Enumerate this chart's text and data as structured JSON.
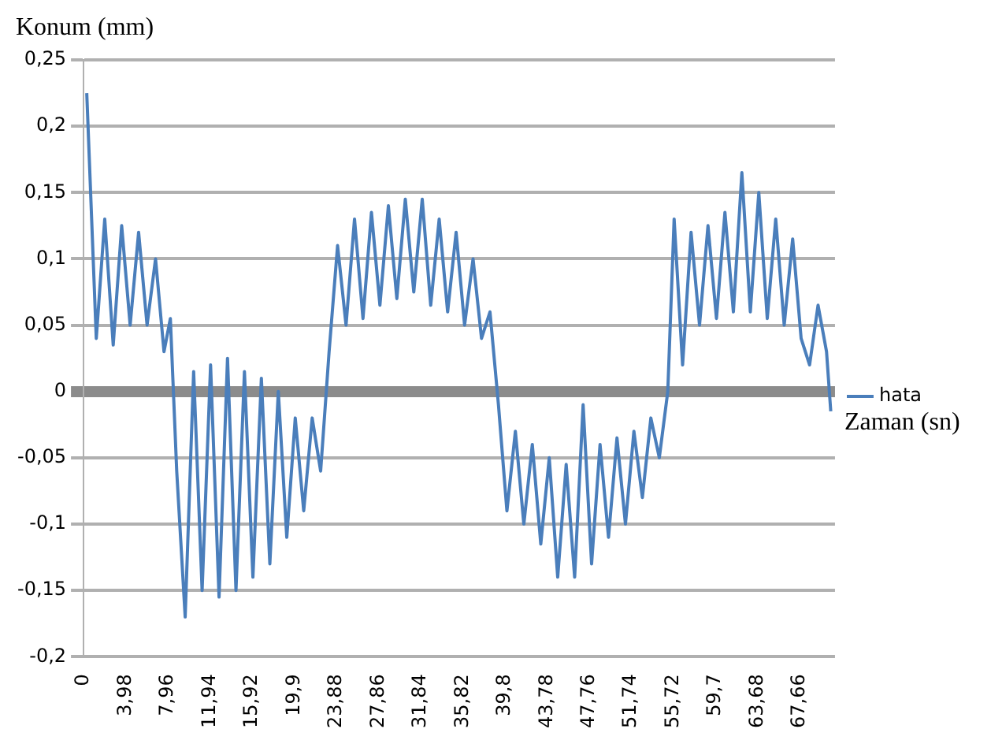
{
  "chart_data": {
    "type": "line",
    "ylabel": "Konum (mm)",
    "xlabel": "Zaman (sn)",
    "xlim": [
      0,
      71
    ],
    "ylim": [
      -0.2,
      0.25
    ],
    "yticks": [
      {
        "value": -0.2,
        "label": "-0,2"
      },
      {
        "value": -0.15,
        "label": "-0,15"
      },
      {
        "value": -0.1,
        "label": "-0,1"
      },
      {
        "value": -0.05,
        "label": "-0,05"
      },
      {
        "value": 0,
        "label": "0"
      },
      {
        "value": 0.05,
        "label": "0,05"
      },
      {
        "value": 0.1,
        "label": "0,1"
      },
      {
        "value": 0.15,
        "label": "0,15"
      },
      {
        "value": 0.2,
        "label": "0,2"
      },
      {
        "value": 0.25,
        "label": "0,25"
      }
    ],
    "xticks": [
      0,
      {
        "value": 3.98,
        "label": "3,98"
      },
      {
        "value": 7.96,
        "label": "7,96"
      },
      {
        "value": 11.94,
        "label": "11,94"
      },
      {
        "value": 15.92,
        "label": "15,92"
      },
      {
        "value": 19.9,
        "label": "19,9"
      },
      {
        "value": 23.88,
        "label": "23,88"
      },
      {
        "value": 27.86,
        "label": "27,86"
      },
      {
        "value": 31.84,
        "label": "31,84"
      },
      {
        "value": 35.82,
        "label": "35,82"
      },
      {
        "value": 39.8,
        "label": "39,8"
      },
      {
        "value": 43.78,
        "label": "43,78"
      },
      {
        "value": 47.76,
        "label": "47,76"
      },
      {
        "value": 51.74,
        "label": "51,74"
      },
      {
        "value": 55.72,
        "label": "55,72"
      },
      {
        "value": 59.7,
        "label": "59,7"
      },
      {
        "value": 63.68,
        "label": "63,68"
      },
      {
        "value": 67.66,
        "label": "67,66"
      }
    ],
    "grid": "y",
    "legend": "right",
    "marker": "none",
    "line_style": "solid",
    "x": [
      0.3,
      1.2,
      2,
      2.8,
      3.6,
      4.4,
      5.2,
      6,
      6.8,
      7.6,
      8.2,
      8.8,
      9.6,
      10.4,
      11.2,
      12,
      12.8,
      13.6,
      14.4,
      15.2,
      16,
      16.8,
      17.6,
      18.4,
      19.2,
      20,
      20.8,
      21.6,
      22.4,
      23.2,
      24,
      24.8,
      25.6,
      26.4,
      27.2,
      28,
      28.8,
      29.6,
      30.4,
      31.2,
      32,
      32.8,
      33.6,
      34.4,
      35.2,
      36,
      36.8,
      37.6,
      38.4,
      39.2,
      40,
      40.8,
      41.6,
      42.4,
      43.2,
      44,
      44.8,
      45.6,
      46.4,
      47.2,
      48,
      48.8,
      49.6,
      50.4,
      51.2,
      52,
      52.8,
      53.6,
      54.4,
      55.2,
      55.8,
      56.6,
      57.4,
      58.2,
      59,
      59.8,
      60.6,
      61.4,
      62.2,
      63,
      63.8,
      64.6,
      65.4,
      66.2,
      67,
      67.8,
      68.6,
      69.4,
      70.2,
      70.6
    ],
    "series": [
      {
        "name": "hata",
        "color": "#4a7ebb",
        "values": [
          0.225,
          0.04,
          0.13,
          0.035,
          0.125,
          0.05,
          0.12,
          0.05,
          0.1,
          0.03,
          0.055,
          -0.06,
          -0.17,
          0.015,
          -0.15,
          0.02,
          -0.155,
          0.025,
          -0.15,
          0.015,
          -0.14,
          0.01,
          -0.13,
          0.0,
          -0.11,
          -0.02,
          -0.09,
          -0.02,
          -0.06,
          0.03,
          0.11,
          0.05,
          0.13,
          0.055,
          0.135,
          0.065,
          0.14,
          0.07,
          0.145,
          0.075,
          0.145,
          0.065,
          0.13,
          0.06,
          0.12,
          0.05,
          0.1,
          0.04,
          0.06,
          -0.01,
          -0.09,
          -0.03,
          -0.1,
          -0.04,
          -0.115,
          -0.05,
          -0.14,
          -0.055,
          -0.14,
          -0.01,
          -0.13,
          -0.04,
          -0.11,
          -0.035,
          -0.1,
          -0.03,
          -0.08,
          -0.02,
          -0.05,
          0.0,
          0.13,
          0.02,
          0.12,
          0.05,
          0.125,
          0.055,
          0.135,
          0.06,
          0.165,
          0.06,
          0.15,
          0.055,
          0.13,
          0.05,
          0.115,
          0.04,
          0.02,
          0.065,
          0.03,
          -0.015
        ]
      }
    ]
  }
}
